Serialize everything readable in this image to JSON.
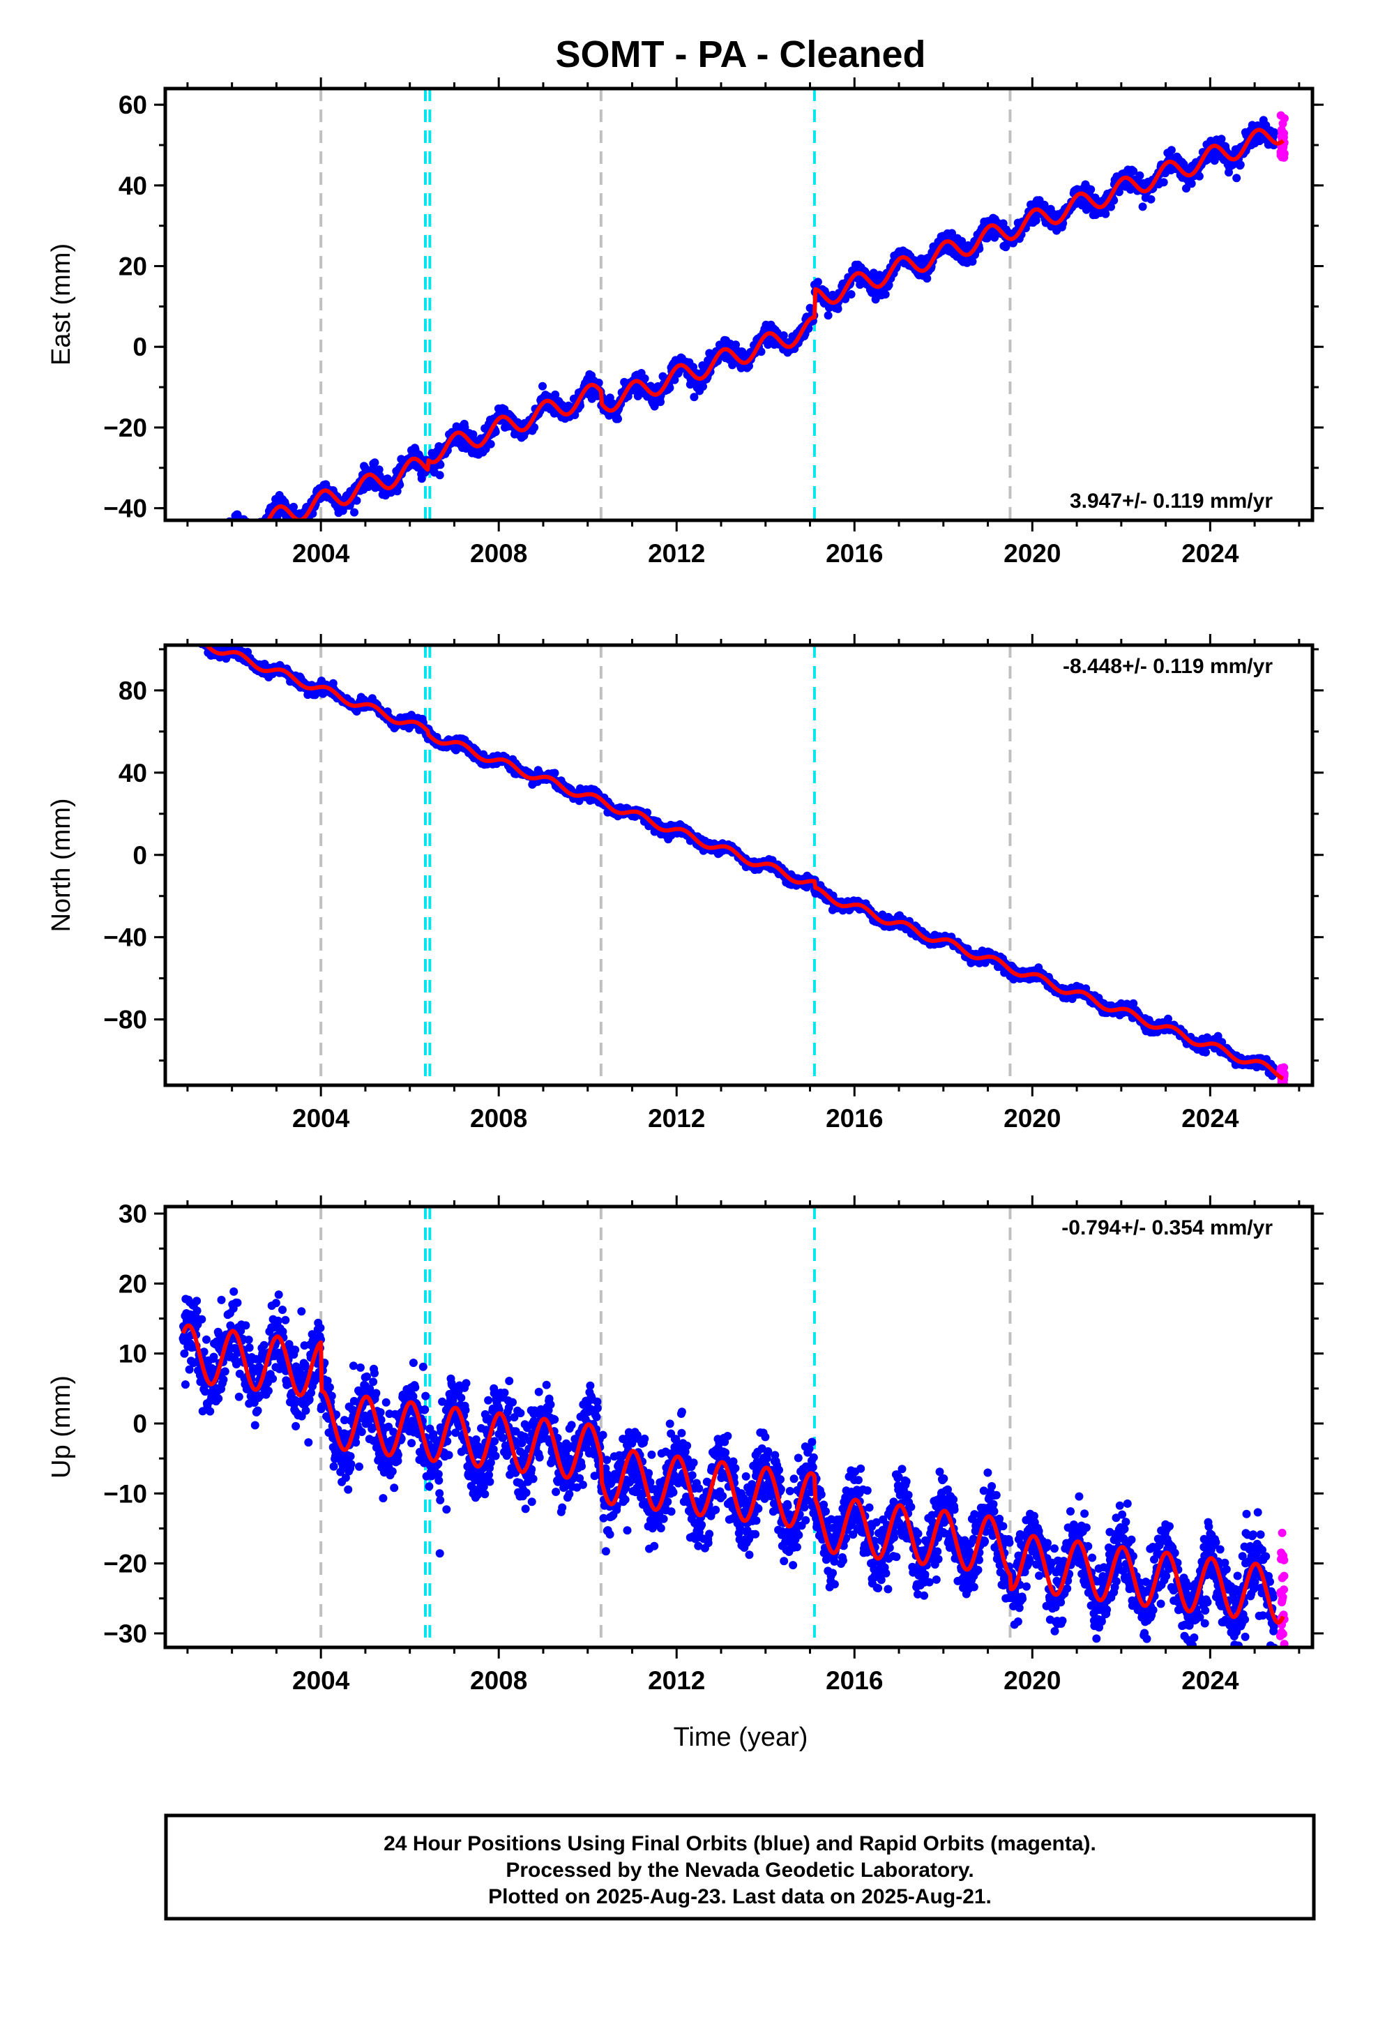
{
  "chart_data": {
    "type": "scatter",
    "title": "SOMT  - PA - Cleaned",
    "xlabel": "Time (year)",
    "xlim": [
      2000.5,
      2026.3
    ],
    "x_ticks": [
      "2004",
      "2008",
      "2012",
      "2016",
      "2020",
      "2024"
    ],
    "grid": false,
    "series_legend": [
      "24 Hour Positions Using Final Orbits (blue)",
      "Rapid Orbits (magenta)",
      "model fit (red)"
    ],
    "colors": {
      "final_orbits": "#0000ff",
      "rapid_orbits": "#ff00ff",
      "fit": "#ff0000",
      "equipment_change": "#c0c0c0",
      "earthquake": "#00e5ee"
    },
    "data_start": 2000.9,
    "data_end": 2025.64,
    "rapid_start": 2025.45,
    "gray_lines": [
      2004.0,
      2010.3,
      2019.5
    ],
    "cyan_lines": [
      2006.35,
      2006.45,
      2015.1
    ],
    "panels": [
      {
        "name": "East",
        "ylabel": "East (mm)",
        "ylim": [
          -43,
          64
        ],
        "y_ticks": [
          -40,
          -20,
          0,
          20,
          40,
          60
        ],
        "y_tick_labels": [
          "−40",
          "−20",
          "0",
          "20",
          "40",
          "60"
        ],
        "rate_label": "3.947+/- 0.119 mm/yr",
        "rate_position": "bottom-right",
        "fit": {
          "ref_year": 2013.0,
          "intercept": -3.0,
          "rate": 3.947,
          "annual_amplitude": 2.6,
          "annual_phase": 1.2,
          "steps": [
            {
              "t": 2006.4,
              "dy": 2.5
            },
            {
              "t": 2010.3,
              "dy": -3.0
            },
            {
              "t": 2015.1,
              "dy": 7.0
            }
          ]
        },
        "scatter_sd": 1.3,
        "outlier_fraction": 0.0
      },
      {
        "name": "North",
        "ylabel": "North (mm)",
        "ylim": [
          -112,
          102
        ],
        "y_ticks": [
          -80,
          -40,
          0,
          40,
          80
        ],
        "y_tick_labels": [
          "−80",
          "−40",
          "0",
          "40",
          "80"
        ],
        "rate_label": "-8.448+/- 0.119 mm/yr",
        "rate_position": "top-right",
        "fit": {
          "ref_year": 2013.0,
          "intercept": 4.5,
          "rate": -8.448,
          "annual_amplitude": 2.0,
          "annual_phase": 0.6,
          "steps": [
            {
              "t": 2006.4,
              "dy": -1.5
            },
            {
              "t": 2015.1,
              "dy": -3.0
            }
          ]
        },
        "scatter_sd": 1.3,
        "outlier_fraction": 0.0
      },
      {
        "name": "Up",
        "ylabel": "Up (mm)",
        "ylim": [
          -32,
          31
        ],
        "y_ticks": [
          -30,
          -20,
          -10,
          0,
          10,
          20,
          30
        ],
        "y_tick_labels": [
          "−30",
          "−20",
          "−10",
          "0",
          "10",
          "20",
          "30"
        ],
        "rate_label": "-0.794+/- 0.354 mm/yr",
        "rate_position": "top-right",
        "fit": {
          "ref_year": 2013.0,
          "intercept": 0.5,
          "rate": -0.794,
          "annual_amplitude": 4.0,
          "annual_phase": 1.4,
          "steps": [
            {
              "t": 2004.0,
              "dy": -7.0
            },
            {
              "t": 2010.3,
              "dy": -3.0
            },
            {
              "t": 2015.1,
              "dy": -3.0
            },
            {
              "t": 2019.5,
              "dy": -2.0
            }
          ]
        },
        "scatter_sd": 2.6,
        "outlier_fraction": 0.01
      }
    ]
  },
  "footer": {
    "line1": "24 Hour Positions Using Final Orbits (blue) and Rapid Orbits (magenta).",
    "line2": "Processed by the Nevada Geodetic Laboratory.",
    "line3": "Plotted on 2025-Aug-23. Last data on 2025-Aug-21."
  }
}
